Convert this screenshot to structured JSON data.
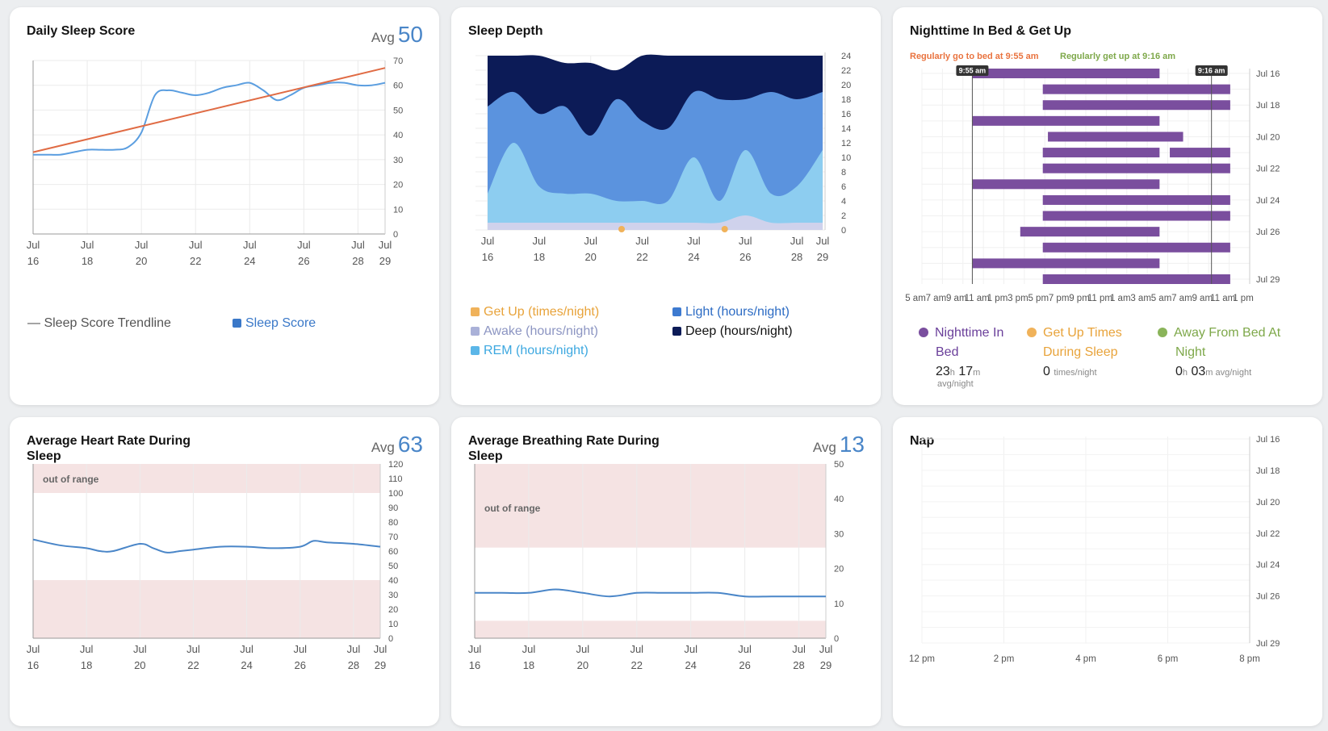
{
  "cards": {
    "sleep_score": {
      "title": "Daily Sleep Score",
      "avg_label": "Avg",
      "avg_value": "50"
    },
    "sleep_depth": {
      "title": "Sleep Depth"
    },
    "in_bed": {
      "title": "Nighttime In Bed & Get Up",
      "bed_note": "Regularly go to bed at 9:55 am",
      "up_note": "Regularly get up at 9:16 am",
      "marker_bed": "9:55 am",
      "marker_up": "9:16 am"
    },
    "heart_rate": {
      "title_line1": "Average Heart Rate During",
      "title_line2": "Sleep",
      "avg_label": "Avg",
      "avg_value": "63",
      "out_of_range": "out of range"
    },
    "breathing": {
      "title_line1": "Average Breathing Rate During",
      "title_line2": "Sleep",
      "avg_label": "Avg",
      "avg_value": "13",
      "out_of_range": "out of range"
    },
    "nap": {
      "title": "Nap"
    }
  },
  "legends": {
    "sleep_score": {
      "trendline": "— Sleep Score Trendline",
      "score": "Sleep Score"
    },
    "sleep_depth": {
      "getup": "Get Up (times/night)",
      "awake": "Awake (hours/night)",
      "rem": "REM (hours/night)",
      "light": "Light (hours/night)",
      "deep": "Deep (hours/night)"
    },
    "in_bed": {
      "bed_line1": "Nighttime In",
      "bed_line2": "Bed",
      "bed_h": "23",
      "bed_h_unit": "h",
      "bed_m": "17",
      "bed_m_unit": "m",
      "bed_sub": "avg/night",
      "getup_line1": "Get Up Times",
      "getup_line2": "During Sleep",
      "getup_val": "0",
      "getup_sub": "times/night",
      "away_line1": "Away From Bed At",
      "away_line2": "Night",
      "away_h": "0",
      "away_h_unit": "h",
      "away_m": "03",
      "away_m_unit": "m avg/night"
    }
  },
  "colors": {
    "accent": "#4a86c8",
    "trend": "#e06b44",
    "deep": "#0c1b57",
    "light": "#5b93de",
    "rem": "#8dcdf0",
    "awake": "#cfd2ec",
    "getup": "#f0b25a",
    "bar": "#7a4e9e",
    "band": "#f5e3e3",
    "bed_note": "#e9733f",
    "up_note": "#7ea84a"
  },
  "chart_data": [
    {
      "id": "sleep_score",
      "type": "line",
      "x_ticks": [
        {
          "d": 16,
          "top": "Jul",
          "bottom": "16"
        },
        {
          "d": 18,
          "top": "Jul",
          "bottom": "18"
        },
        {
          "d": 20,
          "top": "Jul",
          "bottom": "20"
        },
        {
          "d": 22,
          "top": "Jul",
          "bottom": "22"
        },
        {
          "d": 24,
          "top": "Jul",
          "bottom": "24"
        },
        {
          "d": 26,
          "top": "Jul",
          "bottom": "26"
        },
        {
          "d": 28,
          "top": "Jul",
          "bottom": "28"
        },
        {
          "d": 29,
          "top": "Jul",
          "bottom": "29"
        }
      ],
      "y_ticks": [
        0,
        10,
        20,
        30,
        40,
        50,
        60,
        70
      ],
      "ylim": [
        0,
        70
      ],
      "xlim": [
        16,
        29
      ],
      "series": [
        {
          "name": "Sleep Score",
          "x": [
            16,
            16.5,
            17,
            17.5,
            18,
            18.5,
            19,
            19.5,
            20,
            20.5,
            21,
            21.5,
            22,
            22.5,
            23,
            23.5,
            24,
            24.5,
            25,
            25.5,
            26,
            26.5,
            27,
            27.5,
            28,
            28.5,
            29
          ],
          "values": [
            32,
            32,
            32,
            33,
            34,
            34,
            34,
            35,
            41,
            56,
            58,
            57,
            56,
            57,
            59,
            60,
            61,
            58,
            54,
            56,
            59,
            60,
            61,
            61,
            60,
            60,
            61
          ]
        },
        {
          "name": "Sleep Score Trendline",
          "x": [
            16,
            29
          ],
          "values": [
            33,
            67
          ]
        }
      ]
    },
    {
      "id": "sleep_depth",
      "type": "area",
      "x_ticks": [
        {
          "d": 16,
          "top": "Jul",
          "bottom": "16"
        },
        {
          "d": 18,
          "top": "Jul",
          "bottom": "18"
        },
        {
          "d": 20,
          "top": "Jul",
          "bottom": "20"
        },
        {
          "d": 22,
          "top": "Jul",
          "bottom": "22"
        },
        {
          "d": 24,
          "top": "Jul",
          "bottom": "24"
        },
        {
          "d": 26,
          "top": "Jul",
          "bottom": "26"
        },
        {
          "d": 28,
          "top": "Jul",
          "bottom": "28"
        },
        {
          "d": 29,
          "top": "Jul",
          "bottom": "29"
        }
      ],
      "y_ticks": [
        0,
        2,
        4,
        6,
        8,
        10,
        12,
        14,
        16,
        18,
        20,
        22,
        24
      ],
      "ylim": [
        0,
        24
      ],
      "xlim": [
        16,
        29
      ],
      "x": [
        16,
        17,
        18,
        19,
        20,
        21,
        22,
        23,
        24,
        25,
        26,
        27,
        28,
        29
      ],
      "series": [
        {
          "name": "Awake (hours/night)",
          "values": [
            1,
            1,
            1,
            1,
            1,
            1,
            1,
            1,
            1,
            1,
            2,
            1,
            1,
            1
          ]
        },
        {
          "name": "REM (hours/night)",
          "values": [
            4,
            11,
            5,
            4,
            4,
            3,
            3,
            3,
            9,
            3,
            9,
            4,
            5,
            10
          ]
        },
        {
          "name": "Light (hours/night)",
          "values": [
            12,
            7,
            10,
            12,
            8,
            14,
            11,
            10,
            9,
            14,
            7,
            14,
            12,
            8
          ]
        },
        {
          "name": "Deep (hours/night)",
          "values": [
            7,
            5,
            8,
            6,
            10,
            4,
            9,
            10,
            5,
            6,
            6,
            5,
            6,
            5
          ]
        }
      ],
      "getup": [
        {
          "x": 21.2,
          "value": 0
        },
        {
          "x": 25.2,
          "value": 0
        }
      ]
    },
    {
      "id": "in_bed",
      "type": "bar",
      "x_ticks": [
        "5 am",
        "7 am",
        "9 am",
        "11 am",
        "1 pm",
        "3 pm",
        "5 pm",
        "7 pm",
        "9 pm",
        "11 pm",
        "1 am",
        "3 am",
        "5 am",
        "7 am",
        "9 am",
        "11 am",
        "1 pm"
      ],
      "y_ticks": [
        "Jul 16",
        "Jul 18",
        "Jul 20",
        "Jul 22",
        "Jul 24",
        "Jul 26",
        "Jul 29"
      ],
      "xlim": [
        5,
        37
      ],
      "markers": {
        "bed": 9.92,
        "up": 33.27
      },
      "bars": [
        [
          0,
          9.9,
          28.2
        ],
        [
          1,
          16.8,
          35.1
        ],
        [
          2,
          16.8,
          35.1
        ],
        [
          3,
          9.9,
          28.2
        ],
        [
          4,
          17.3,
          30.5
        ],
        [
          5,
          16.8,
          28.2
        ],
        [
          5,
          29.2,
          35.1
        ],
        [
          6,
          16.8,
          35.1
        ],
        [
          7,
          9.9,
          28.2
        ],
        [
          8,
          16.8,
          35.1
        ],
        [
          9,
          16.8,
          35.1
        ],
        [
          10,
          14.6,
          28.2
        ],
        [
          11,
          16.8,
          35.1
        ],
        [
          12,
          9.9,
          28.2
        ],
        [
          13,
          16.8,
          35.1
        ]
      ]
    },
    {
      "id": "heart_rate",
      "type": "line",
      "x_ticks": [
        {
          "d": 16,
          "top": "Jul",
          "bottom": "16"
        },
        {
          "d": 18,
          "top": "Jul",
          "bottom": "18"
        },
        {
          "d": 20,
          "top": "Jul",
          "bottom": "20"
        },
        {
          "d": 22,
          "top": "Jul",
          "bottom": "22"
        },
        {
          "d": 24,
          "top": "Jul",
          "bottom": "24"
        },
        {
          "d": 26,
          "top": "Jul",
          "bottom": "26"
        },
        {
          "d": 28,
          "top": "Jul",
          "bottom": "28"
        },
        {
          "d": 29,
          "top": "Jul",
          "bottom": "29"
        }
      ],
      "y_ticks": [
        0,
        10,
        20,
        30,
        40,
        50,
        60,
        70,
        80,
        90,
        100,
        110,
        120
      ],
      "ylim": [
        0,
        120
      ],
      "xlim": [
        16,
        29
      ],
      "bands": [
        [
          100,
          120
        ],
        [
          0,
          40
        ]
      ],
      "series": [
        {
          "name": "Average Heart Rate",
          "x": [
            16,
            17,
            18,
            18.5,
            19,
            20,
            20.5,
            21,
            21.5,
            22,
            23,
            24,
            25,
            26,
            26.5,
            27,
            28,
            29
          ],
          "values": [
            68,
            64,
            62,
            60,
            60,
            65,
            62,
            59,
            60,
            61,
            63,
            63,
            62,
            63,
            67,
            66,
            65,
            63
          ]
        }
      ]
    },
    {
      "id": "breathing",
      "type": "line",
      "x_ticks": [
        {
          "d": 16,
          "top": "Jul",
          "bottom": "16"
        },
        {
          "d": 18,
          "top": "Jul",
          "bottom": "18"
        },
        {
          "d": 20,
          "top": "Jul",
          "bottom": "20"
        },
        {
          "d": 22,
          "top": "Jul",
          "bottom": "22"
        },
        {
          "d": 24,
          "top": "Jul",
          "bottom": "24"
        },
        {
          "d": 26,
          "top": "Jul",
          "bottom": "26"
        },
        {
          "d": 28,
          "top": "Jul",
          "bottom": "28"
        },
        {
          "d": 29,
          "top": "Jul",
          "bottom": "29"
        }
      ],
      "y_ticks": [
        0,
        10,
        20,
        30,
        40,
        50
      ],
      "ylim": [
        0,
        50
      ],
      "xlim": [
        16,
        29
      ],
      "bands": [
        [
          26,
          50
        ],
        [
          0,
          5
        ]
      ],
      "series": [
        {
          "name": "Average Breathing Rate",
          "x": [
            16,
            17,
            18,
            19,
            20,
            21,
            22,
            23,
            24,
            25,
            26,
            27,
            28,
            29
          ],
          "values": [
            13,
            13,
            13,
            14,
            13,
            12,
            13,
            13,
            13,
            13,
            12,
            12,
            12,
            12
          ]
        }
      ]
    },
    {
      "id": "nap",
      "type": "bar",
      "x_ticks": [
        "12 pm",
        "2 pm",
        "4 pm",
        "6 pm",
        "8 pm"
      ],
      "y_ticks": [
        "Jul 16",
        "Jul 18",
        "Jul 20",
        "Jul 22",
        "Jul 24",
        "Jul 26",
        "Jul 29"
      ],
      "bars": []
    }
  ]
}
